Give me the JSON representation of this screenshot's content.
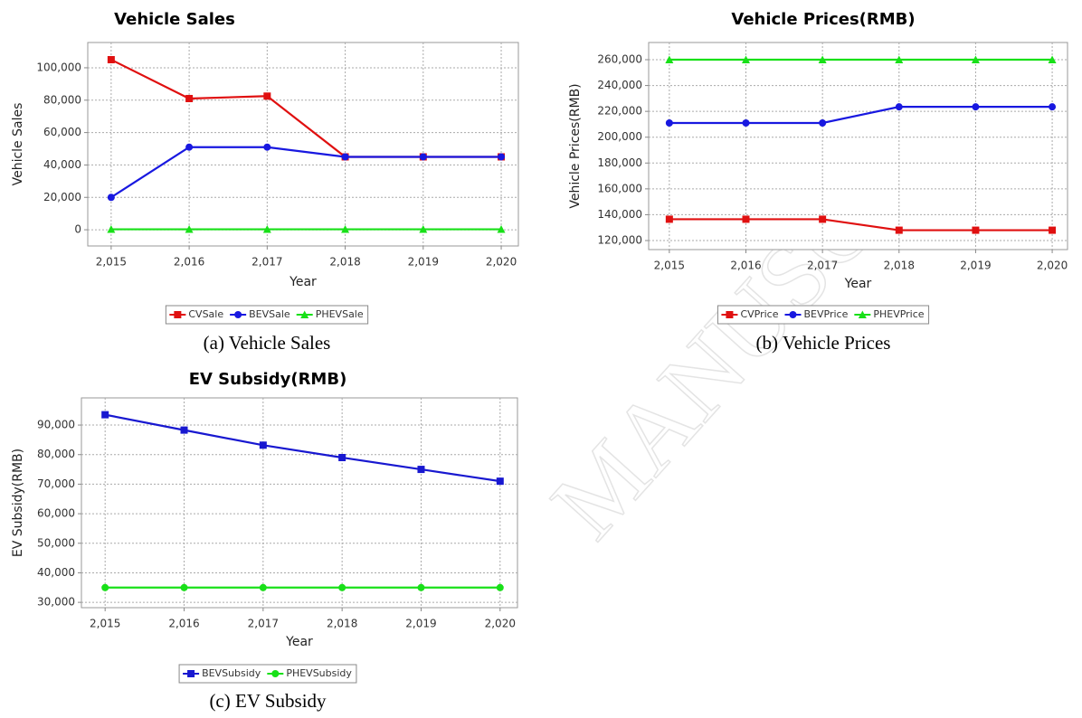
{
  "chart_data": [
    {
      "type": "line",
      "title": "Vehicle Sales",
      "caption": "(a) Vehicle Sales",
      "xlabel": "Year",
      "ylabel": "Vehicle Sales",
      "x": [
        2015,
        2016,
        2017,
        2018,
        2019,
        2020
      ],
      "xlim": [
        2014.7,
        2020.22
      ],
      "xticks": [
        {
          "value": 2015,
          "label": "2,015"
        },
        {
          "value": 2016,
          "label": "2,016"
        },
        {
          "value": 2017,
          "label": "2,017"
        },
        {
          "value": 2018,
          "label": "2,018"
        },
        {
          "value": 2019,
          "label": "2,019"
        },
        {
          "value": 2020,
          "label": "2,020"
        }
      ],
      "ylim": [
        -10000,
        115600
      ],
      "yticks": [
        0,
        {
          "value": 20000,
          "label": "20,000"
        },
        {
          "value": 40000,
          "label": "40,000"
        },
        {
          "value": 60000,
          "label": "60,000"
        },
        {
          "value": 80000,
          "label": "80,000"
        },
        {
          "value": 100000,
          "label": "100,000"
        }
      ],
      "grid": true,
      "legend": "bottom",
      "series": [
        {
          "name": "CVSale",
          "color": "#e01010",
          "marker": "square",
          "values": [
            105000,
            81000,
            82500,
            45000,
            45000,
            45000
          ]
        },
        {
          "name": "BEVSale",
          "color": "#1818e0",
          "marker": "circle",
          "values": [
            20000,
            51000,
            51000,
            45000,
            45000,
            45000
          ]
        },
        {
          "name": "PHEVSale",
          "color": "#18e018",
          "marker": "triangle",
          "values": [
            300,
            300,
            300,
            300,
            300,
            300
          ]
        }
      ]
    },
    {
      "type": "line",
      "title": "Vehicle Prices(RMB)",
      "caption": "(b) Vehicle Prices",
      "xlabel": "Year",
      "ylabel": "Vehicle Prices(RMB)",
      "x": [
        2015,
        2016,
        2017,
        2018,
        2019,
        2020
      ],
      "xlim": [
        2014.73,
        2020.2
      ],
      "xticks": [
        {
          "value": 2015,
          "label": "2,015"
        },
        {
          "value": 2016,
          "label": "2,016"
        },
        {
          "value": 2017,
          "label": "2,017"
        },
        {
          "value": 2018,
          "label": "2,018"
        },
        {
          "value": 2019,
          "label": "2,019"
        },
        {
          "value": 2020,
          "label": "2,020"
        }
      ],
      "ylim": [
        113000,
        273300
      ],
      "yticks": [
        {
          "value": 120000,
          "label": "120,000"
        },
        {
          "value": 140000,
          "label": "140,000"
        },
        {
          "value": 160000,
          "label": "160,000"
        },
        {
          "value": 180000,
          "label": "180,000"
        },
        {
          "value": 200000,
          "label": "200,000"
        },
        {
          "value": 220000,
          "label": "220,000"
        },
        {
          "value": 240000,
          "label": "240,000"
        },
        {
          "value": 260000,
          "label": "260,000"
        }
      ],
      "grid": true,
      "legend": "bottom",
      "series": [
        {
          "name": "CVPrice",
          "color": "#e01010",
          "marker": "square",
          "values": [
            136500,
            136500,
            136500,
            128000,
            128000,
            128000
          ]
        },
        {
          "name": "BEVPrice",
          "color": "#1818e0",
          "marker": "circle",
          "values": [
            211000,
            211000,
            211000,
            223500,
            223500,
            223500
          ]
        },
        {
          "name": "PHEVPrice",
          "color": "#18e018",
          "marker": "triangle",
          "values": [
            260000,
            260000,
            260000,
            260000,
            260000,
            260000
          ]
        }
      ]
    },
    {
      "type": "line",
      "title": "EV Subsidy(RMB)",
      "caption": "(c) EV Subsidy",
      "xlabel": "Year",
      "ylabel": "EV Subsidy(RMB)",
      "x": [
        2015,
        2016,
        2017,
        2018,
        2019,
        2020
      ],
      "xlim": [
        2014.7,
        2020.22
      ],
      "xticks": [
        {
          "value": 2015,
          "label": "2,015"
        },
        {
          "value": 2016,
          "label": "2,016"
        },
        {
          "value": 2017,
          "label": "2,017"
        },
        {
          "value": 2018,
          "label": "2,018"
        },
        {
          "value": 2019,
          "label": "2,019"
        },
        {
          "value": 2020,
          "label": "2,020"
        }
      ],
      "ylim": [
        28200,
        99200
      ],
      "yticks": [
        {
          "value": 30000,
          "label": "30,000"
        },
        {
          "value": 40000,
          "label": "40,000"
        },
        {
          "value": 50000,
          "label": "50,000"
        },
        {
          "value": 60000,
          "label": "60,000"
        },
        {
          "value": 70000,
          "label": "70,000"
        },
        {
          "value": 80000,
          "label": "80,000"
        },
        {
          "value": 90000,
          "label": "90,000"
        }
      ],
      "grid": true,
      "legend": "bottom",
      "series": [
        {
          "name": "BEVSubsidy",
          "color": "#1818d0",
          "marker": "square",
          "values": [
            93500,
            88300,
            83200,
            79000,
            75000,
            71000
          ]
        },
        {
          "name": "PHEVSubsidy",
          "color": "#18e018",
          "marker": "circle",
          "values": [
            35000,
            35000,
            35000,
            35000,
            35000,
            35000
          ]
        }
      ]
    }
  ],
  "watermark": "MANUSC"
}
